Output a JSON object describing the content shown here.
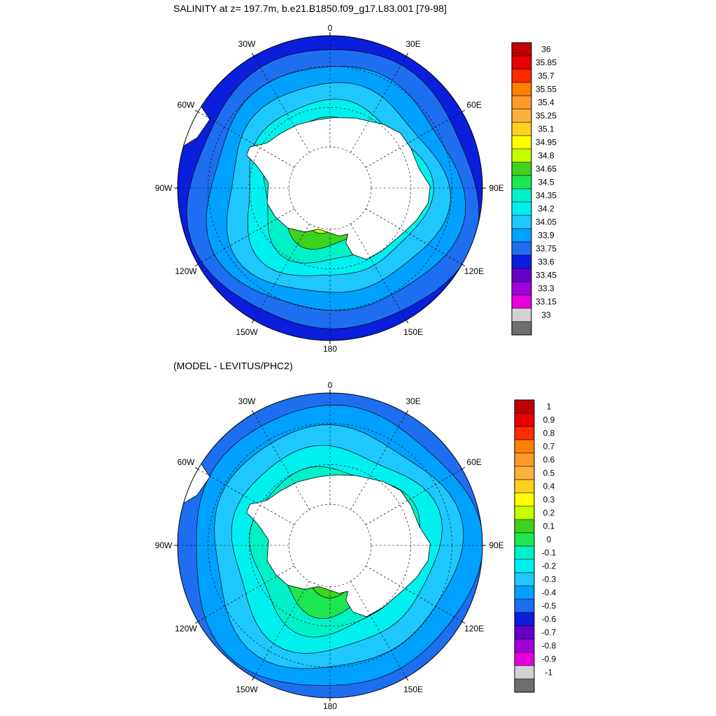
{
  "chart_data": [
    {
      "type": "polar-contour",
      "title": "SALINITY at z= 197.7m, b.e21.B1850.f09_g17.L83.001 [79-98]",
      "lon_labels": [
        "0",
        "30E",
        "60E",
        "90E",
        "120E",
        "150E",
        "180",
        "150W",
        "120W",
        "90W",
        "60W",
        "30W"
      ],
      "colorbar": {
        "levels": [
          "36",
          "35.85",
          "35.7",
          "35.55",
          "35.4",
          "35.25",
          "35.1",
          "34.95",
          "34.8",
          "34.65",
          "34.5",
          "34.35",
          "34.2",
          "34.05",
          "33.9",
          "33.75",
          "33.6",
          "33.45",
          "33.3",
          "33.15",
          "33"
        ],
        "colors": [
          "#c00000",
          "#e60000",
          "#ff2a00",
          "#ff8000",
          "#ff9a2a",
          "#ffb03c",
          "#ffd020",
          "#ffff00",
          "#c8ff00",
          "#3cd21e",
          "#1ee650",
          "#00f0c8",
          "#00f0f0",
          "#1ec8ff",
          "#00a0ff",
          "#1e6ef0",
          "#0a1edc",
          "#6400c8",
          "#a000dc",
          "#e600dc",
          "#d2d2d2",
          "#6e6e6e"
        ]
      },
      "bands": [
        {
          "level": "33.9",
          "color": "#1e6ef0"
        },
        {
          "level": "34.05",
          "color": "#00a0ff"
        },
        {
          "level": "34.2",
          "color": "#1ec8ff"
        },
        {
          "level": "34.35",
          "color": "#00f0f0"
        },
        {
          "level": "34.5",
          "color": "#00f0c8"
        },
        {
          "level": "34.65",
          "color": "#3cd21e"
        },
        {
          "level": "34.8",
          "color": "#c8ff00"
        }
      ]
    },
    {
      "type": "polar-contour",
      "title": "(MODEL - LEVITUS/PHC2)",
      "lon_labels": [
        "0",
        "30E",
        "60E",
        "90E",
        "120E",
        "150E",
        "180",
        "150W",
        "120W",
        "90W",
        "60W",
        "30W"
      ],
      "colorbar": {
        "levels": [
          "1",
          "0.9",
          "0.8",
          "0.7",
          "0.6",
          "0.5",
          "0.4",
          "0.3",
          "0.2",
          "0.1",
          "0",
          "-0.1",
          "-0.2",
          "-0.3",
          "-0.4",
          "-0.5",
          "-0.6",
          "-0.7",
          "-0.8",
          "-0.9",
          "-1"
        ],
        "colors": [
          "#c00000",
          "#e60000",
          "#ff2a00",
          "#ff8000",
          "#ff9a2a",
          "#ffb03c",
          "#ffd020",
          "#ffff00",
          "#c8ff00",
          "#3cd21e",
          "#1ee650",
          "#00f0c8",
          "#00f0f0",
          "#1ec8ff",
          "#00a0ff",
          "#1e6ef0",
          "#0a1edc",
          "#6400c8",
          "#a000dc",
          "#e600dc",
          "#d2d2d2",
          "#6e6e6e"
        ]
      },
      "bands": [
        {
          "level": "-0.4",
          "color": "#00a0ff"
        },
        {
          "level": "-0.3",
          "color": "#1ec8ff"
        },
        {
          "level": "-0.2",
          "color": "#00f0f0"
        },
        {
          "level": "-0.1",
          "color": "#00f0c8"
        },
        {
          "level": "0",
          "color": "#1ee650"
        },
        {
          "level": "0.1",
          "color": "#3cd21e"
        }
      ]
    }
  ]
}
